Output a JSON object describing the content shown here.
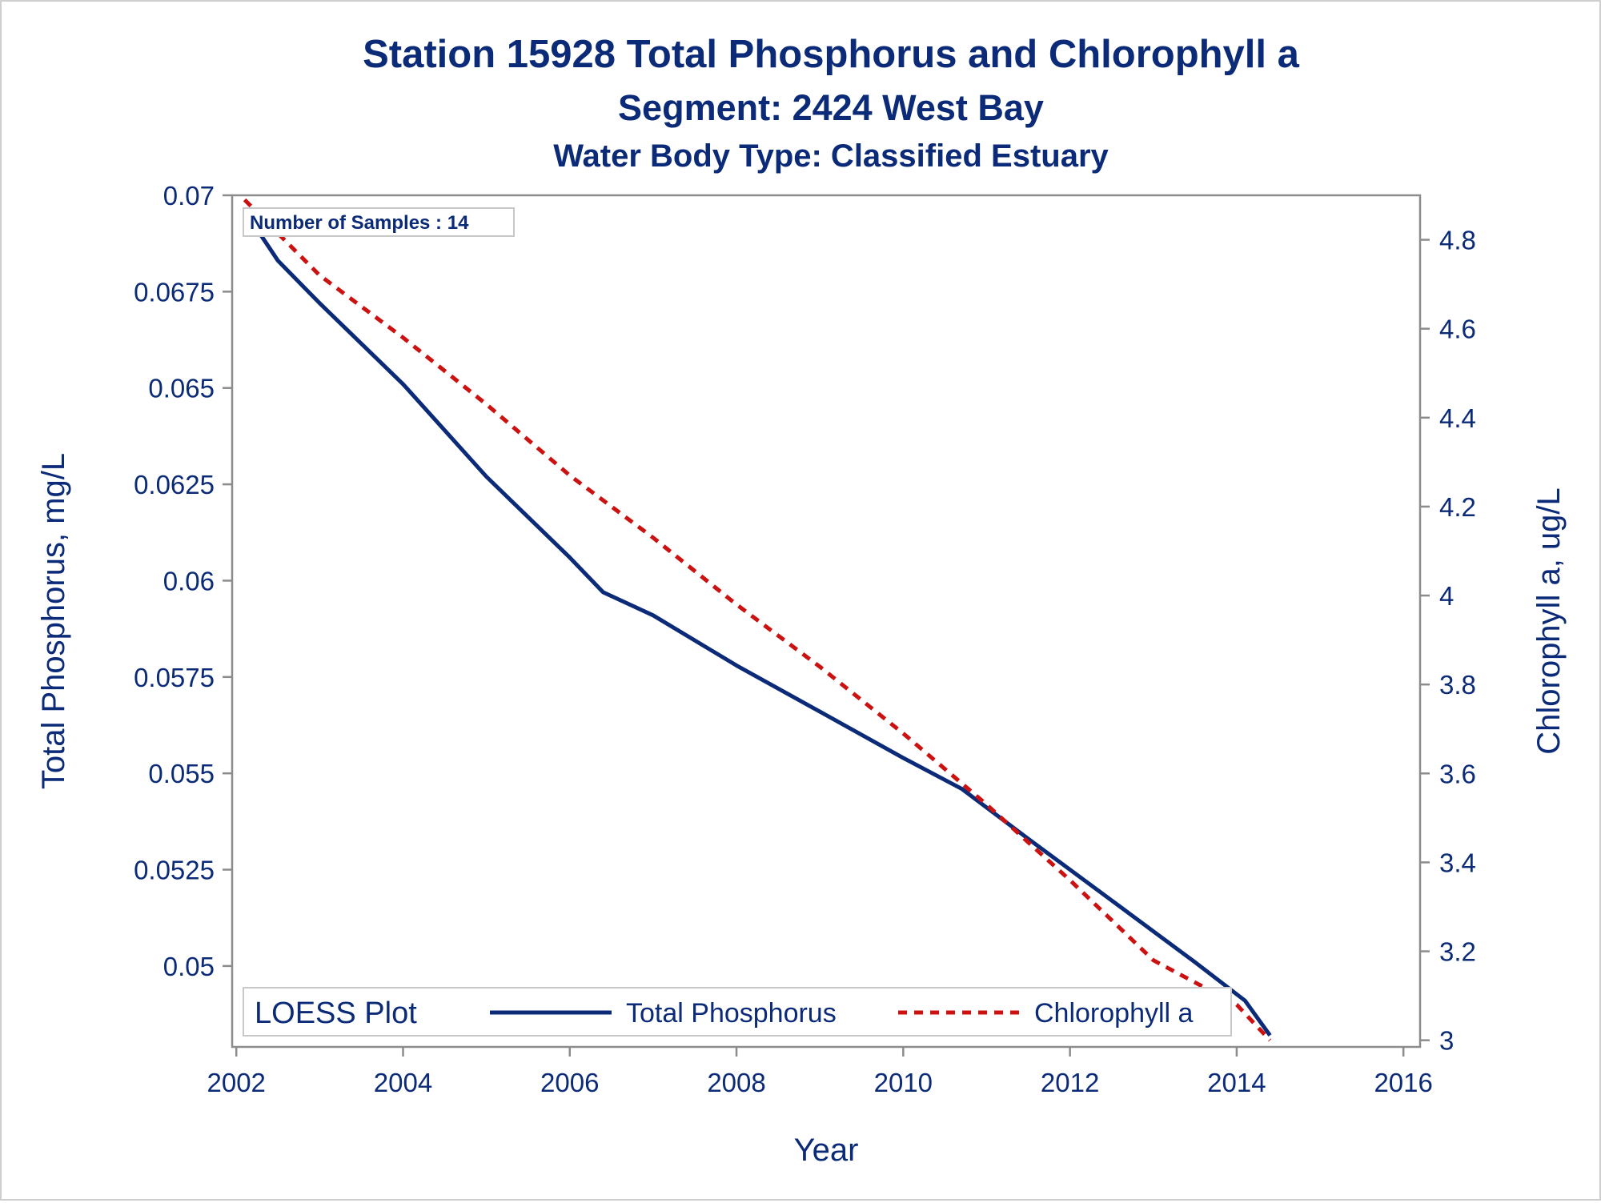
{
  "chart_data": {
    "type": "line",
    "title": "Station 15928   Total Phosphorus and Chlorophyll a",
    "subtitle": "Segment: 2424  West Bay",
    "subtitle2": "Water Body Type: Classified Estuary",
    "xlabel": "Year",
    "ylabel_left": "Total Phosphorus, mg/L",
    "ylabel_right": "Chlorophyll a, ug/L",
    "xlim": [
      2001.95,
      2016.2
    ],
    "ylim_left": [
      0.0479,
      0.07
    ],
    "ylim_right": [
      2.985,
      4.9
    ],
    "x_ticks": [
      2002,
      2004,
      2006,
      2008,
      2010,
      2012,
      2014,
      2016
    ],
    "x_tick_labels": [
      "2002",
      "2004",
      "2006",
      "2008",
      "2010",
      "2012",
      "2014",
      "2016"
    ],
    "y_left_ticks": [
      0.05,
      0.0525,
      0.055,
      0.0575,
      0.06,
      0.0625,
      0.065,
      0.0675,
      0.07
    ],
    "y_left_tick_labels": [
      "0.05",
      "0.0525",
      "0.055",
      "0.0575",
      "0.06",
      "0.0625",
      "0.065",
      "0.0675",
      "0.07"
    ],
    "y_right_ticks": [
      3,
      3.2,
      3.4,
      3.6,
      3.8,
      4,
      4.2,
      4.4,
      4.6,
      4.8
    ],
    "y_right_tick_labels": [
      "3",
      "3.2",
      "3.4",
      "3.6",
      "3.8",
      "4",
      "4.2",
      "4.4",
      "4.6",
      "4.8"
    ],
    "annotation": "Number of Samples : 14",
    "legend": {
      "title": "LOESS Plot",
      "placement": "bottom-inside",
      "items": [
        "Total Phosphorus",
        "Chlorophyll a"
      ]
    },
    "series": [
      {
        "name": "Total Phosphorus",
        "axis": "left",
        "color": "#0b2a78",
        "style": "solid",
        "x": [
          2002.1,
          2002.5,
          2003.0,
          2004.0,
          2005.0,
          2006.0,
          2006.4,
          2007.0,
          2008.0,
          2009.0,
          2010.0,
          2010.7,
          2011.5,
          2012.5,
          2013.5,
          2014.1,
          2014.4
        ],
        "y": [
          0.0696,
          0.0683,
          0.0672,
          0.0651,
          0.0627,
          0.0606,
          0.0597,
          0.0591,
          0.0578,
          0.0566,
          0.0554,
          0.0546,
          0.0533,
          0.0517,
          0.0501,
          0.0491,
          0.0482
        ]
      },
      {
        "name": "Chlorophyll a",
        "axis": "right",
        "color": "#cc1111",
        "style": "dashed",
        "x": [
          2002.1,
          2003.0,
          2004.0,
          2005.0,
          2006.0,
          2007.0,
          2008.0,
          2009.0,
          2010.0,
          2011.0,
          2012.0,
          2013.0,
          2014.0,
          2014.4
        ],
        "y": [
          4.89,
          4.72,
          4.58,
          4.43,
          4.27,
          4.13,
          3.98,
          3.84,
          3.69,
          3.53,
          3.36,
          3.18,
          3.08,
          3.0
        ]
      }
    ]
  }
}
